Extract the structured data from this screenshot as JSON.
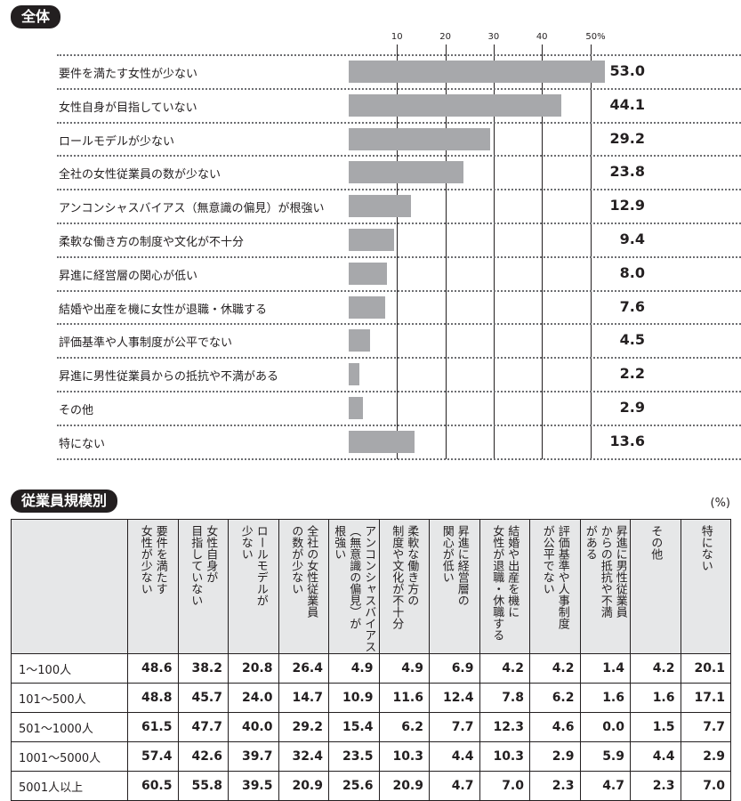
{
  "section1_title": "全体",
  "section2_title": "従業員規模別",
  "unit": "(%)",
  "colors": {
    "bar": "#a7a8ab",
    "header_bg": "#e6e7e8",
    "badge": "#231f20"
  },
  "chart_data": {
    "type": "bar",
    "orientation": "horizontal",
    "xlim": [
      0,
      55
    ],
    "ticks": [
      "10",
      "20",
      "30",
      "40",
      "50%"
    ],
    "tick_values": [
      10,
      20,
      30,
      40,
      50
    ],
    "categories": [
      "要件を満たす女性が少ない",
      "女性自身が目指していない",
      "ロールモデルが少ない",
      "全社の女性従業員の数が少ない",
      "アンコンシャスバイアス（無意識の偏見）が根強い",
      "柔軟な働き方の制度や文化が不十分",
      "昇進に経営層の関心が低い",
      "結婚や出産を機に女性が退職・休職する",
      "評価基準や人事制度が公平でない",
      "昇進に男性従業員からの抵抗や不満がある",
      "その他",
      "特にない"
    ],
    "values": [
      53.0,
      44.1,
      29.2,
      23.8,
      12.9,
      9.4,
      8.0,
      7.6,
      4.5,
      2.2,
      2.9,
      13.6
    ],
    "value_labels": [
      "53.0",
      "44.1",
      "29.2",
      "23.8",
      "12.9",
      "9.4",
      "8.0",
      "7.6",
      "4.5",
      "2.2",
      "2.9",
      "13.6"
    ]
  },
  "table": {
    "headers": [
      [
        "要件を満たす",
        "女性が少ない"
      ],
      [
        "女性自身が",
        "目指していない"
      ],
      [
        "ロールモデルが",
        "少ない"
      ],
      [
        "全社の女性従業員",
        "の数が少ない"
      ],
      [
        "アンコンシャスバイアス",
        "（無意識の偏見）が",
        "根強い"
      ],
      [
        "柔軟な働き方の",
        "制度や文化が不十分"
      ],
      [
        "昇進に経営層の",
        "関心が低い"
      ],
      [
        "結婚や出産を機に",
        "女性が退職・休職する"
      ],
      [
        "評価基準や人事制度",
        "が公平でない"
      ],
      [
        "昇進に男性従業員",
        "からの抵抗や不満",
        "がある"
      ],
      [
        "その他"
      ],
      [
        "特にない"
      ]
    ],
    "rows": [
      {
        "label": "1～100人",
        "values": [
          "48.6",
          "38.2",
          "20.8",
          "26.4",
          "4.9",
          "4.9",
          "6.9",
          "4.2",
          "4.2",
          "1.4",
          "4.2",
          "20.1"
        ]
      },
      {
        "label": "101～500人",
        "values": [
          "48.8",
          "45.7",
          "24.0",
          "14.7",
          "10.9",
          "11.6",
          "12.4",
          "7.8",
          "6.2",
          "1.6",
          "1.6",
          "17.1"
        ]
      },
      {
        "label": "501～1000人",
        "values": [
          "61.5",
          "47.7",
          "40.0",
          "29.2",
          "15.4",
          "6.2",
          "7.7",
          "12.3",
          "4.6",
          "0.0",
          "1.5",
          "7.7"
        ]
      },
      {
        "label": "1001～5000人",
        "values": [
          "57.4",
          "42.6",
          "39.7",
          "32.4",
          "23.5",
          "10.3",
          "4.4",
          "10.3",
          "2.9",
          "5.9",
          "4.4",
          "2.9"
        ]
      },
      {
        "label": "5001人以上",
        "values": [
          "60.5",
          "55.8",
          "39.5",
          "20.9",
          "25.6",
          "20.9",
          "4.7",
          "7.0",
          "2.3",
          "4.7",
          "2.3",
          "7.0"
        ]
      }
    ]
  }
}
